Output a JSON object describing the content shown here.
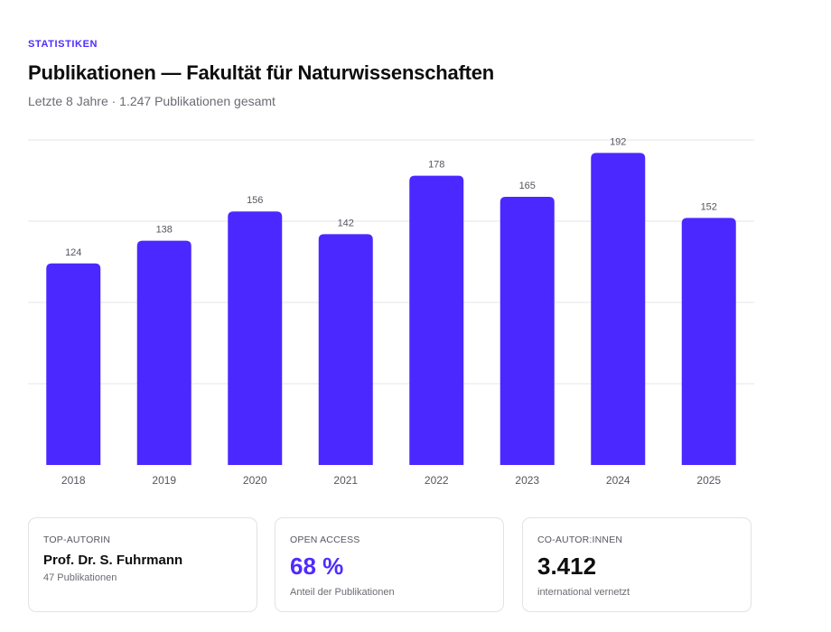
{
  "header": {
    "eyebrow": "STATISTIKEN",
    "title": "Publikationen — Fakultät für Naturwissenschaften",
    "subtitle": "Letzte 8 Jahre · 1.247 Publikationen gesamt"
  },
  "colors": {
    "accent": "#4f2bff",
    "bar": "#4a28ff",
    "grid": "#e6e6ec",
    "tick_text": "#55555f",
    "value_label": "#55555f"
  },
  "chart_data": {
    "type": "bar",
    "title": "Publikationen — Fakultät für Naturwissenschaften",
    "categories": [
      "2018",
      "2019",
      "2020",
      "2021",
      "2022",
      "2023",
      "2024",
      "2025"
    ],
    "values": [
      124,
      138,
      156,
      142,
      178,
      165,
      192,
      152
    ],
    "value_labels": [
      "124",
      "138",
      "156",
      "142",
      "178",
      "165",
      "192",
      "152"
    ],
    "ylim": [
      0,
      200
    ],
    "grid": true,
    "data_labels": true,
    "legend": "none"
  },
  "cards": [
    {
      "label": "TOP-AUTORIN",
      "value": "Prof. Dr. S. Fuhrmann",
      "sub": "47 Publikationen"
    },
    {
      "label": "OPEN ACCESS",
      "value": "68 %",
      "sub": "Anteil der Publikationen"
    },
    {
      "label": "CO-AUTOR:INNEN",
      "value": "3.412",
      "sub": "international vernetzt"
    }
  ]
}
